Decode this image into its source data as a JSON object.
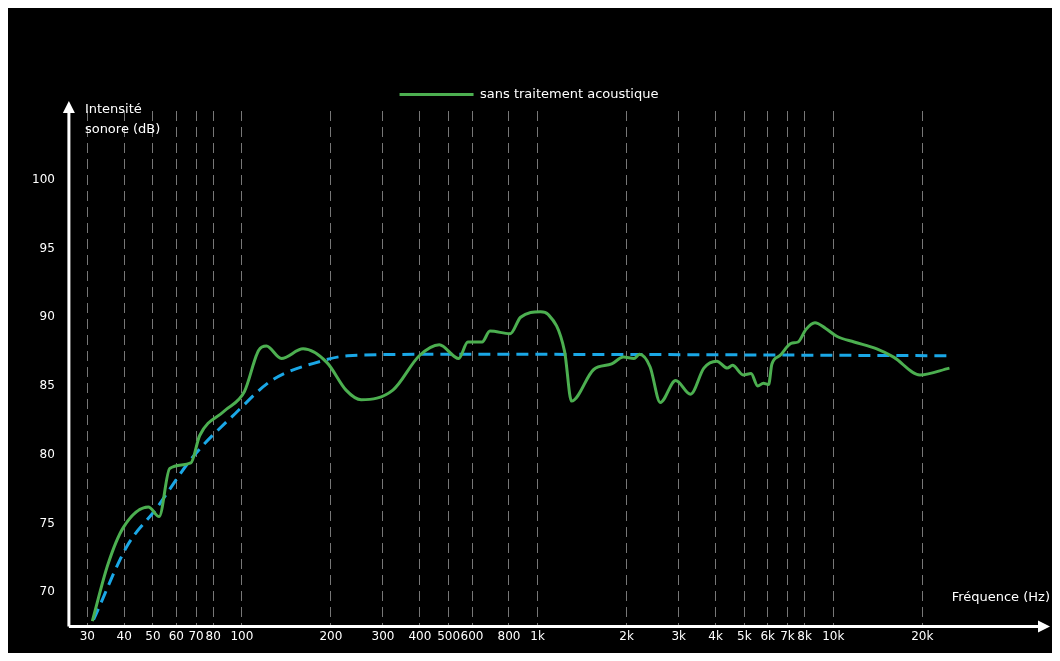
{
  "chart_data": {
    "type": "line",
    "xlabel": "Fréquence (Hz)",
    "ylabel": "Intensité sonore (dB)",
    "log": "x",
    "grid": "x",
    "legend": "top right",
    "marker": "none",
    "xlim": [
      26,
      50000
    ],
    "ylim": [
      67.5,
      105
    ],
    "xticks": [
      30,
      40,
      50,
      60,
      70,
      80,
      100,
      200,
      300,
      400,
      500,
      600,
      800,
      {
        "value": 1000,
        "label": "1k"
      },
      {
        "value": 2000,
        "label": "2k"
      },
      {
        "value": 3000,
        "label": "3k"
      },
      {
        "value": 4000,
        "label": "4k"
      },
      {
        "value": 5000,
        "label": "5k"
      },
      {
        "value": 6000,
        "label": "6k"
      },
      {
        "value": 7000,
        "label": "7k"
      },
      {
        "value": 8000,
        "label": "8k"
      },
      {
        "value": 10000,
        "label": "10k"
      },
      {
        "value": 20000,
        "label": "20k"
      }
    ],
    "yticks": [
      70,
      75,
      80,
      85,
      90,
      95,
      100
    ],
    "series": [
      {
        "name": "sans traitement acoustique",
        "color": "#4caf50",
        "line_style": "solid",
        "x": [
          31.2,
          35.2,
          39.7,
          48.3,
          52.5,
          57,
          67.2,
          72,
          87.4,
          102,
          114,
          121,
          136,
          161,
          194,
          225,
          253,
          324,
          398,
          465,
          541,
          581,
          649,
          690,
          808,
          876,
          1023,
          1086,
          1234,
          1302,
          1548,
          1780,
          1950,
          2118,
          2210,
          2400,
          2600,
          2930,
          3290,
          3650,
          4036,
          4380,
          4560,
          4960,
          5270,
          5550,
          5800,
          6040,
          6200,
          6590,
          7200,
          7600,
          8070,
          8670,
          9400,
          10310,
          11760,
          14030,
          16000,
          19640,
          24700
        ],
        "values": [
          67.9,
          72.0,
          74.7,
          76.2,
          75.5,
          79.0,
          79.4,
          81.4,
          83.2,
          84.6,
          87.6,
          87.9,
          87.0,
          87.7,
          86.7,
          84.7,
          84.0,
          84.7,
          87.2,
          88.0,
          87.0,
          88.2,
          88.2,
          89.0,
          88.8,
          90.0,
          90.4,
          90.2,
          87.5,
          83.9,
          86.2,
          86.6,
          87.1,
          87.0,
          87.3,
          86.4,
          83.8,
          85.4,
          84.4,
          86.3,
          86.8,
          86.3,
          86.5,
          85.8,
          85.9,
          85.0,
          85.2,
          85.1,
          86.6,
          87.2,
          88.1,
          88.2,
          89.1,
          89.6,
          89.2,
          88.6,
          88.2,
          87.7,
          87.1,
          85.8,
          86.3
        ]
      },
      {
        "color": "#1aa7e6",
        "line_style": "dashed",
        "x": [
          31.5,
          41,
          51,
          68,
          95,
          126,
          185,
          228,
          400,
          1000,
          24700
        ],
        "values": [
          68.0,
          73.4,
          76.0,
          79.8,
          83.0,
          85.4,
          86.8,
          87.2,
          87.3,
          87.3,
          87.2
        ]
      }
    ]
  }
}
